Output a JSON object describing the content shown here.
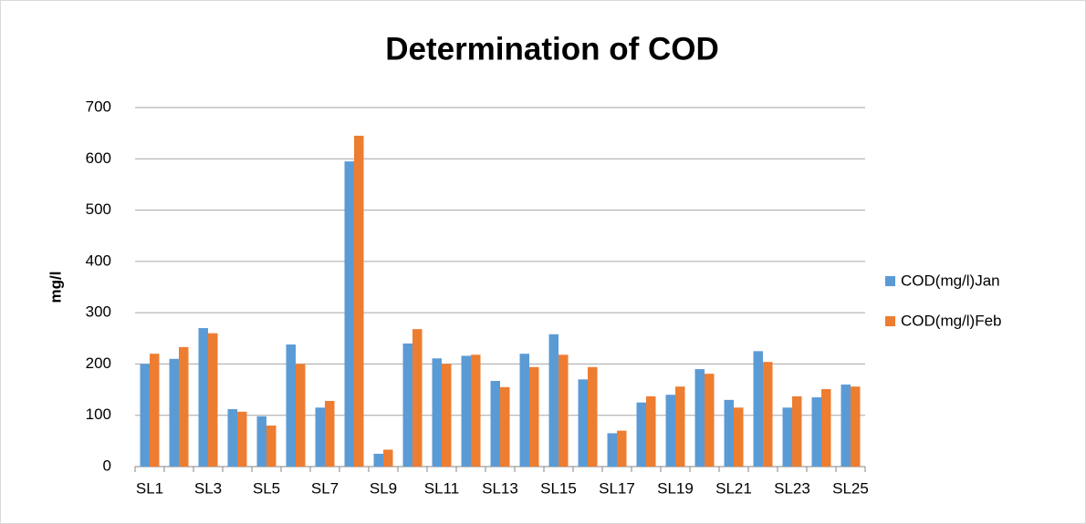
{
  "chart_data": {
    "type": "bar",
    "title": "Determination of COD",
    "y_label": "mg/l",
    "categories": [
      "SL1",
      null,
      "SL3",
      null,
      "SL5",
      null,
      "SL7",
      null,
      "SL9",
      null,
      "SL11",
      null,
      "SL13",
      null,
      "SL15",
      null,
      "SL17",
      null,
      "SL19",
      null,
      "SL21",
      null,
      "SL23",
      null,
      "SL25"
    ],
    "series": [
      {
        "name": "COD(mg/l)Jan",
        "color": "#5b9bd5",
        "values": [
          200,
          210,
          270,
          112,
          98,
          238,
          115,
          595,
          25,
          240,
          211,
          216,
          167,
          220,
          258,
          170,
          65,
          125,
          140,
          190,
          130,
          225,
          115,
          135,
          160
        ]
      },
      {
        "name": "COD(mg/l)Feb",
        "color": "#ed7d31",
        "values": [
          220,
          233,
          260,
          107,
          80,
          200,
          128,
          645,
          33,
          268,
          200,
          218,
          155,
          194,
          218,
          194,
          70,
          137,
          156,
          181,
          115,
          204,
          137,
          151,
          156
        ]
      }
    ],
    "ylim": [
      0,
      700
    ],
    "yticks": [
      0,
      100,
      200,
      300,
      400,
      500,
      600,
      700
    ],
    "grid": true,
    "legend": "right"
  }
}
